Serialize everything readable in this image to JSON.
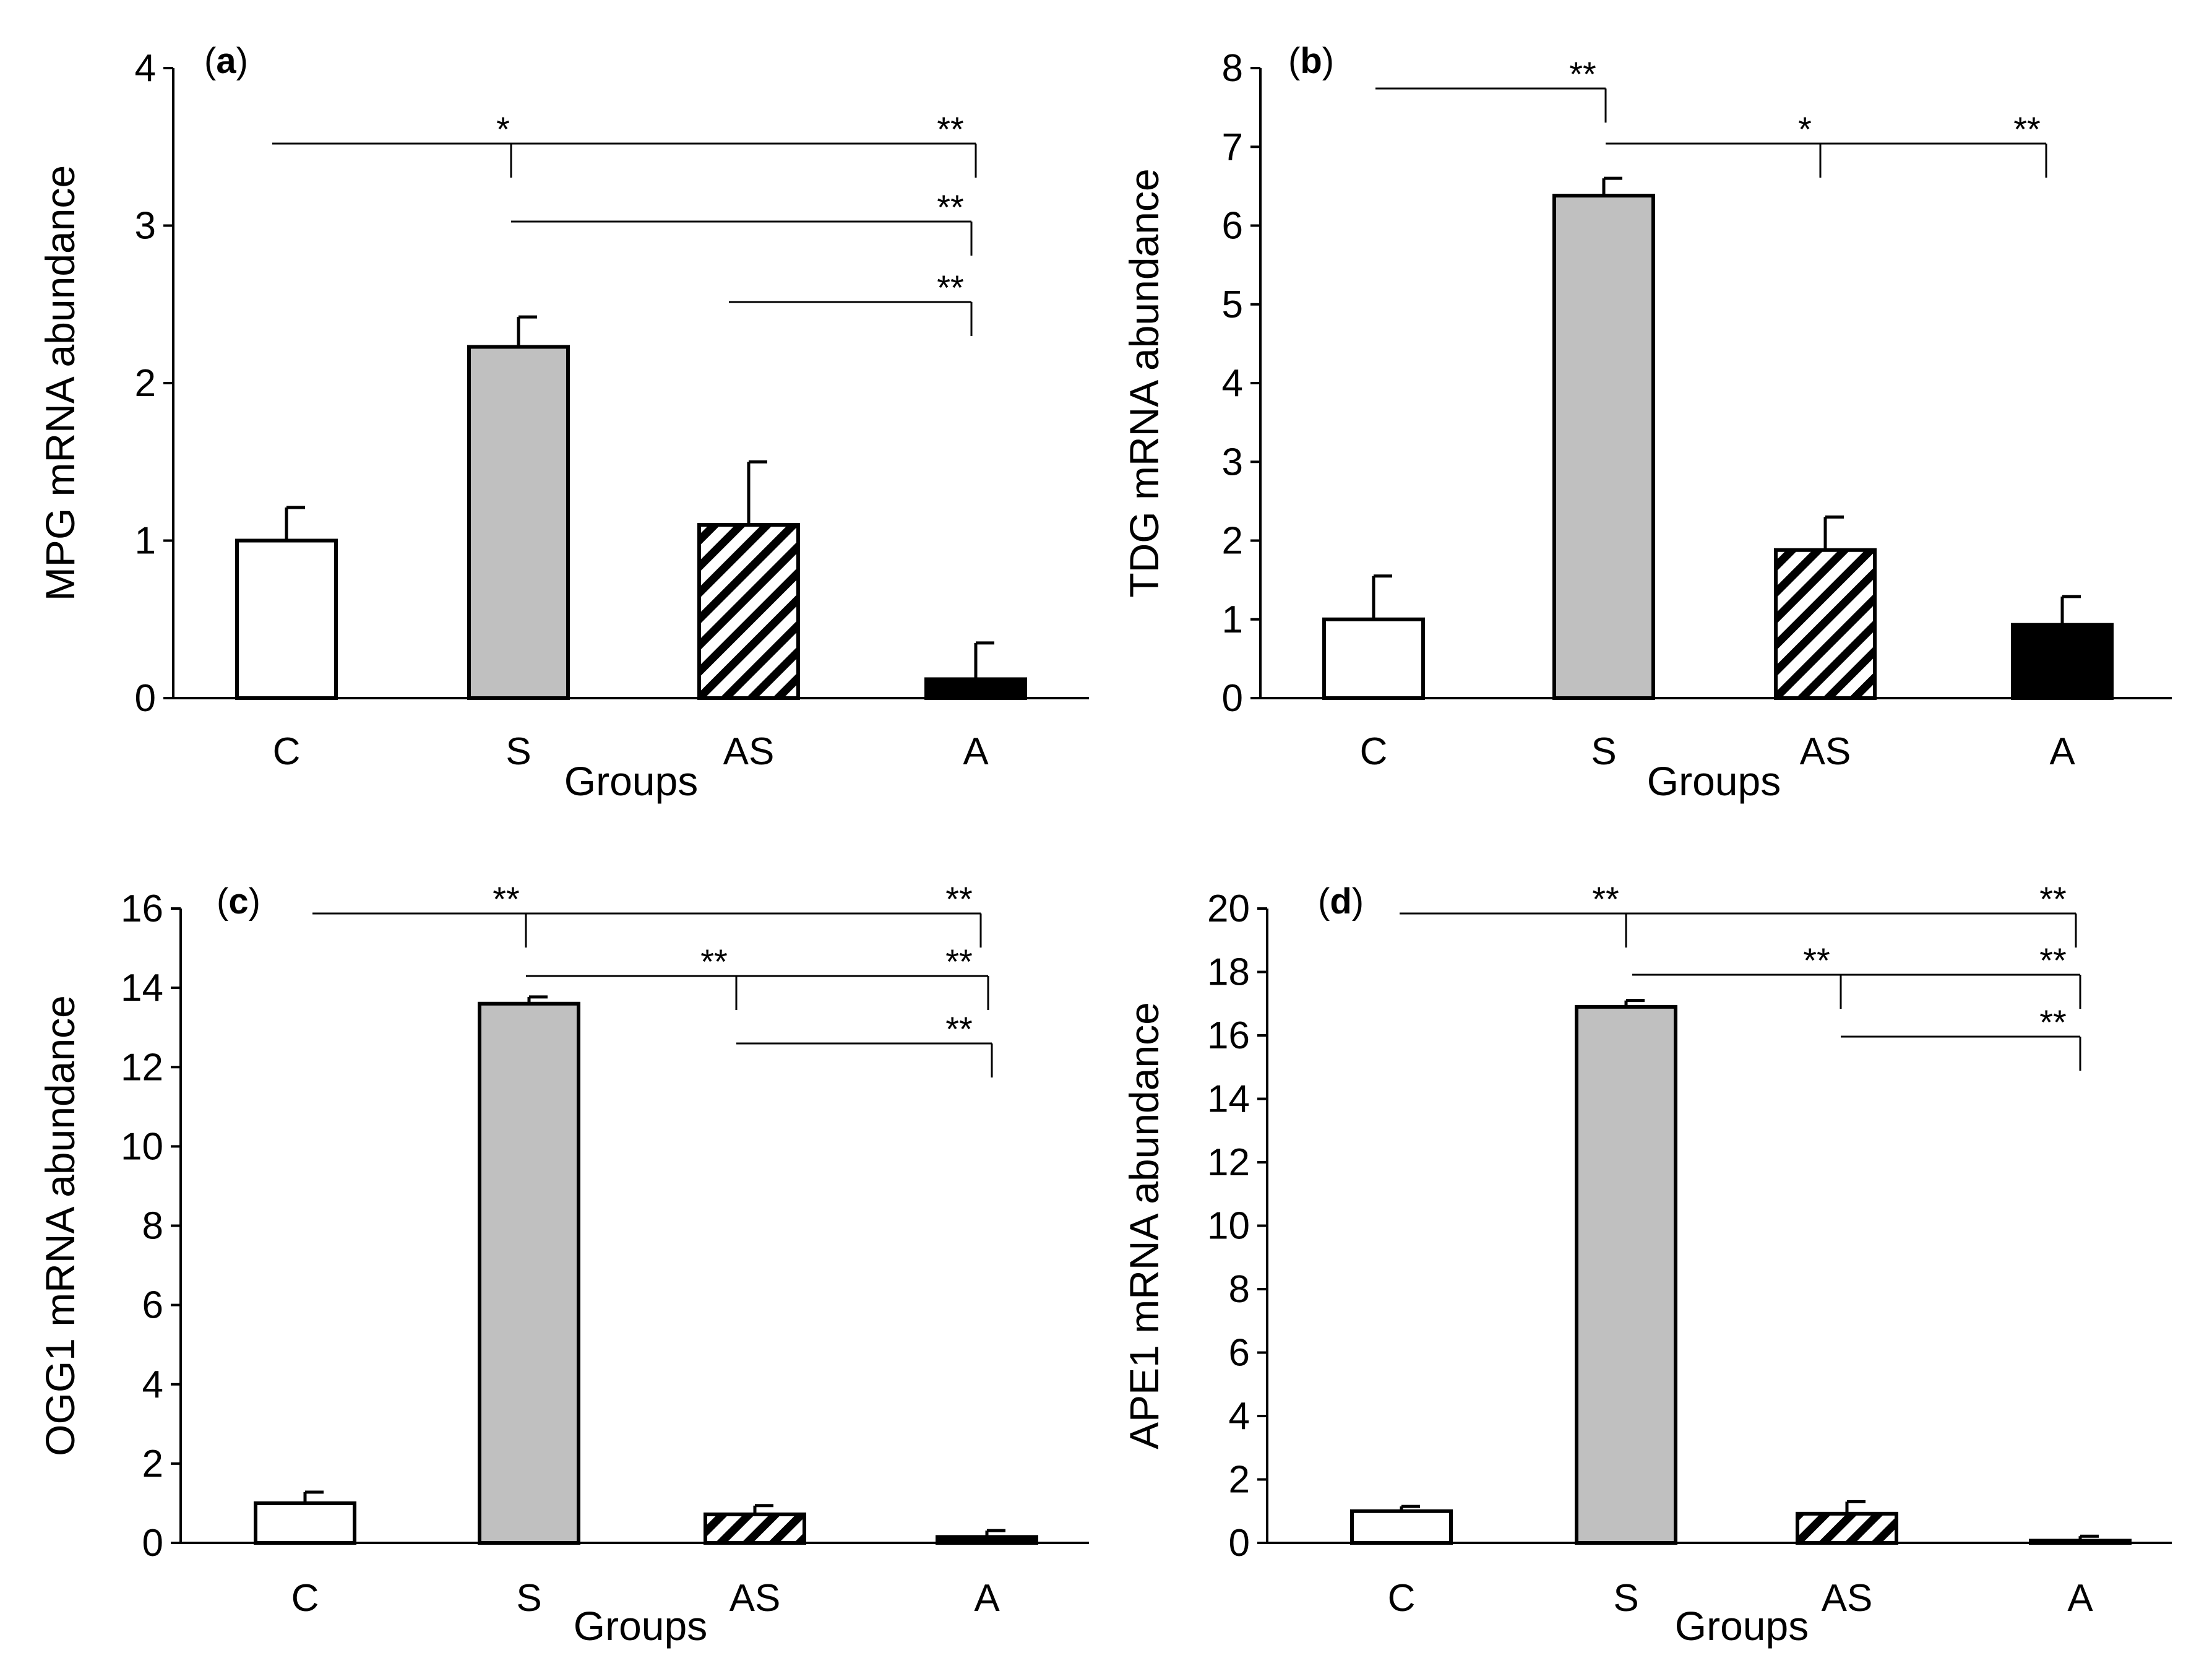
{
  "colors": {
    "bar_C": "#ffffff",
    "bar_S": "#c0c0c0",
    "bar_AS": "hatch",
    "bar_A": "#000000",
    "axis": "#000000"
  },
  "chart_data": [
    {
      "type": "bar",
      "panel_label": "a",
      "ylabel": "MPG mRNA abundance",
      "xlabel": "Groups",
      "categories": [
        "C",
        "S",
        "AS",
        "A"
      ],
      "values": [
        1.0,
        2.23,
        1.1,
        0.12
      ],
      "errors": [
        0.21,
        0.19,
        0.4,
        0.23
      ],
      "ylim": [
        0,
        4
      ],
      "yticks": [
        0,
        1,
        2,
        3,
        4
      ],
      "grid": false,
      "significance": [
        {
          "label": "*",
          "from": "C",
          "to": "S"
        },
        {
          "label": "**",
          "from": "S",
          "to": "A"
        },
        {
          "label": "**",
          "from": "S",
          "to": "A"
        },
        {
          "label": "**",
          "from": "AS",
          "to": "A"
        }
      ]
    },
    {
      "type": "bar",
      "panel_label": "b",
      "ylabel": "TDG mRNA abundance",
      "xlabel": "Groups",
      "categories": [
        "C",
        "S",
        "AS",
        "A"
      ],
      "values": [
        1.0,
        6.38,
        1.88,
        0.93
      ],
      "errors": [
        0.55,
        0.22,
        0.42,
        0.36
      ],
      "ylim": [
        0,
        8
      ],
      "yticks": [
        0,
        1,
        2,
        3,
        4,
        5,
        6,
        7,
        8
      ],
      "grid": false,
      "significance": [
        {
          "label": "**",
          "from": "C",
          "to": "S"
        },
        {
          "label": "*",
          "from": "S",
          "to": "AS"
        },
        {
          "label": "**",
          "from": "S",
          "to": "A"
        }
      ]
    },
    {
      "type": "bar",
      "panel_label": "c",
      "ylabel": "OGG1 mRNA abundance",
      "xlabel": "Groups",
      "categories": [
        "C",
        "S",
        "AS",
        "A"
      ],
      "values": [
        1.0,
        13.6,
        0.72,
        0.15
      ],
      "errors": [
        0.28,
        0.17,
        0.22,
        0.16
      ],
      "ylim": [
        0,
        16
      ],
      "yticks": [
        0,
        2,
        4,
        6,
        8,
        10,
        12,
        14,
        16
      ],
      "grid": false,
      "significance": [
        {
          "label": "**",
          "from": "C",
          "to": "S"
        },
        {
          "label": "**",
          "from": "S",
          "to": "A"
        },
        {
          "label": "**",
          "from": "S",
          "to": "AS"
        },
        {
          "label": "**",
          "from": "S",
          "to": "A"
        },
        {
          "label": "**",
          "from": "AS",
          "to": "A"
        }
      ]
    },
    {
      "type": "bar",
      "panel_label": "d",
      "ylabel": "APE1 mRNA abundance",
      "xlabel": "Groups",
      "categories": [
        "C",
        "S",
        "AS",
        "A"
      ],
      "values": [
        1.0,
        16.9,
        0.92,
        0.07
      ],
      "errors": [
        0.15,
        0.2,
        0.38,
        0.14
      ],
      "ylim": [
        0,
        20
      ],
      "yticks": [
        0,
        2,
        4,
        6,
        8,
        10,
        12,
        14,
        16,
        18,
        20
      ],
      "grid": false,
      "significance": [
        {
          "label": "**",
          "from": "C",
          "to": "S"
        },
        {
          "label": "**",
          "from": "S",
          "to": "A"
        },
        {
          "label": "**",
          "from": "S",
          "to": "AS"
        },
        {
          "label": "**",
          "from": "S",
          "to": "A"
        },
        {
          "label": "**",
          "from": "AS",
          "to": "A"
        }
      ]
    }
  ]
}
